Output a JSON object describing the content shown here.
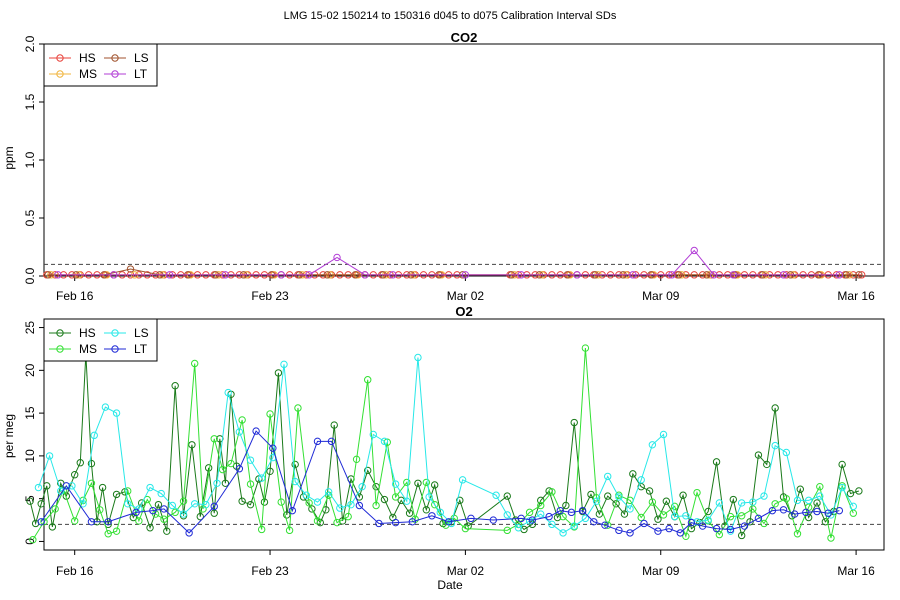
{
  "figure_title": "LMG   15-02    150214 to 150316    d045 to d075   Calibration Interval SDs",
  "xlabel": "Date",
  "x_ticks": [
    {
      "label": "Feb 16",
      "day": 2
    },
    {
      "label": "Feb 23",
      "day": 9
    },
    {
      "label": "Mar 02",
      "day": 16
    },
    {
      "label": "Mar 09",
      "day": 23
    },
    {
      "label": "Mar 16",
      "day": 30
    }
  ],
  "colors": {
    "HS_co2": "#e8413a",
    "MS_co2": "#f0b43c",
    "LS_co2": "#a0522d",
    "LT_co2": "#b23ed6",
    "HS_o2": "#1a7a1a",
    "MS_o2": "#33e033",
    "LS_o2": "#27e8e8",
    "LT_o2": "#1f2ad6",
    "refline": "#444444"
  },
  "chart_data": [
    {
      "type": "line",
      "title": "CO2",
      "ylabel": "ppm",
      "xlim": [
        0.9,
        31.0
      ],
      "ylim": [
        0,
        2.0
      ],
      "y_ticks": [
        "0.0",
        "0.5",
        "1.0",
        "1.5",
        "2.0"
      ],
      "y_tick_values": [
        0,
        0.5,
        1.0,
        1.5,
        2.0
      ],
      "reference_line": 0.1,
      "legend": [
        "HS",
        "MS",
        "LS",
        "LT"
      ],
      "series": [
        {
          "name": "HS",
          "x": [
            1.0,
            1.3,
            1.6,
            1.9,
            2.2,
            2.5,
            2.8,
            3.1,
            3.4,
            3.7,
            4.0,
            4.3,
            4.6,
            4.9,
            5.2,
            5.5,
            5.8,
            6.1,
            6.4,
            6.7,
            7.0,
            7.3,
            7.6,
            7.9,
            8.2,
            8.5,
            8.8,
            9.1,
            9.4,
            9.7,
            10.0,
            10.3,
            10.6,
            10.9,
            11.2,
            11.5,
            11.8,
            12.1,
            12.4,
            12.7,
            13.0,
            13.3,
            13.6,
            13.9,
            14.2,
            14.5,
            14.8,
            15.1,
            15.4,
            15.7,
            17.6,
            17.9,
            18.2,
            18.5,
            18.8,
            19.1,
            19.4,
            19.7,
            20.0,
            20.3,
            20.6,
            20.9,
            21.2,
            21.5,
            21.8,
            22.1,
            22.4,
            22.7,
            23.0,
            23.3,
            23.6,
            23.9,
            24.2,
            24.5,
            24.8,
            25.1,
            25.4,
            25.7,
            26.0,
            26.3,
            26.6,
            26.9,
            27.2,
            27.5,
            27.8,
            28.1,
            28.4,
            28.7,
            29.0,
            29.3,
            29.6,
            29.9,
            30.2
          ],
          "values": [
            0.01,
            0.01,
            0.01,
            0.01,
            0.01,
            0.01,
            0.01,
            0.01,
            0.01,
            0.01,
            0.01,
            0.01,
            0.01,
            0.01,
            0.01,
            0.01,
            0.01,
            0.01,
            0.01,
            0.01,
            0.01,
            0.01,
            0.01,
            0.01,
            0.01,
            0.01,
            0.01,
            0.01,
            0.01,
            0.01,
            0.01,
            0.01,
            0.01,
            0.01,
            0.01,
            0.01,
            0.01,
            0.01,
            0.01,
            0.01,
            0.01,
            0.01,
            0.01,
            0.01,
            0.01,
            0.01,
            0.01,
            0.01,
            0.01,
            0.01,
            0.01,
            0.01,
            0.01,
            0.01,
            0.01,
            0.01,
            0.01,
            0.01,
            0.01,
            0.01,
            0.01,
            0.01,
            0.01,
            0.01,
            0.01,
            0.01,
            0.01,
            0.01,
            0.01,
            0.01,
            0.01,
            0.01,
            0.01,
            0.01,
            0.01,
            0.01,
            0.01,
            0.01,
            0.01,
            0.01,
            0.01,
            0.01,
            0.01,
            0.01,
            0.01,
            0.01,
            0.01,
            0.01,
            0.01,
            0.01,
            0.01,
            0.01,
            0.01
          ]
        },
        {
          "name": "MS",
          "x": [
            1.15,
            2.15,
            3.15,
            4.15,
            5.15,
            6.15,
            7.15,
            8.15,
            9.15,
            10.15,
            11.15,
            12.15,
            13.15,
            14.15,
            15.15,
            17.75,
            18.75,
            19.75,
            20.75,
            21.75,
            22.75,
            23.75,
            24.75,
            25.75,
            26.75,
            27.75,
            28.75,
            29.75
          ],
          "values": [
            0.01,
            0.01,
            0.01,
            0.01,
            0.01,
            0.01,
            0.01,
            0.01,
            0.01,
            0.01,
            0.01,
            0.01,
            0.01,
            0.01,
            0.01,
            0.01,
            0.01,
            0.01,
            0.01,
            0.01,
            0.01,
            0.01,
            0.01,
            0.01,
            0.01,
            0.01,
            0.01,
            0.01
          ]
        },
        {
          "name": "LS",
          "x": [
            1.05,
            2.05,
            3.05,
            4.0,
            5.05,
            6.05,
            7.05,
            8.05,
            9.05,
            10.05,
            11.05,
            12.05,
            13.05,
            14.05,
            15.05,
            15.9,
            17.65,
            18.65,
            19.65,
            20.65,
            21.65,
            22.65,
            23.65,
            24.65,
            25.65,
            26.65,
            27.65,
            28.65,
            29.65,
            30.1
          ],
          "values": [
            0.01,
            0.01,
            0.01,
            0.06,
            0.01,
            0.01,
            0.01,
            0.01,
            0.01,
            0.01,
            0.01,
            0.01,
            0.01,
            0.01,
            0.01,
            0.01,
            0.01,
            0.01,
            0.01,
            0.01,
            0.01,
            0.01,
            0.01,
            0.01,
            0.01,
            0.01,
            0.01,
            0.01,
            0.01,
            0.01
          ]
        },
        {
          "name": "LT",
          "x": [
            1.4,
            3.4,
            5.4,
            7.4,
            9.4,
            10.4,
            11.4,
            12.4,
            13.4,
            16.0,
            18.0,
            20.0,
            22.0,
            23.4,
            24.2,
            24.9,
            25.6,
            27.4,
            29.4
          ],
          "values": [
            0.01,
            0.01,
            0.01,
            0.01,
            0.01,
            0.01,
            0.16,
            0.01,
            0.01,
            0.01,
            0.01,
            0.01,
            0.01,
            0.01,
            0.22,
            0.01,
            0.01,
            0.01,
            0.01
          ]
        }
      ]
    },
    {
      "type": "line",
      "title": "O2",
      "ylabel": "per meg",
      "xlim": [
        0.9,
        31.0
      ],
      "ylim": [
        -1,
        26
      ],
      "y_ticks": [
        "0",
        "5",
        "10",
        "15",
        "20",
        "25"
      ],
      "y_tick_values": [
        0,
        5,
        10,
        15,
        20,
        25
      ],
      "reference_line": 2.0,
      "legend": [
        "HS",
        "MS",
        "LS",
        "LT"
      ],
      "series": [
        {
          "name": "HS",
          "x": [
            0.4,
            0.6,
            0.8,
            1.0,
            1.2,
            1.5,
            1.7,
            2.0,
            2.2,
            2.4,
            2.6,
            2.8,
            3.0,
            3.2,
            3.5,
            3.8,
            4.1,
            4.4,
            4.7,
            5.0,
            5.3,
            5.6,
            5.9,
            6.2,
            6.5,
            6.8,
            7.0,
            7.2,
            7.4,
            7.6,
            7.8,
            8.0,
            8.3,
            8.6,
            8.8,
            9.0,
            9.3,
            9.6,
            9.9,
            10.2,
            10.5,
            10.8,
            11.0,
            11.3,
            11.6,
            11.9,
            12.2,
            12.5,
            12.8,
            13.1,
            13.4,
            13.7,
            14.0,
            14.3,
            14.6,
            14.9,
            15.2,
            15.5,
            15.8,
            16.1,
            17.5,
            17.8,
            18.1,
            18.4,
            18.7,
            19.0,
            19.3,
            19.6,
            19.9,
            20.2,
            20.5,
            20.8,
            21.1,
            21.4,
            21.7,
            22.0,
            22.3,
            22.6,
            22.9,
            23.2,
            23.5,
            23.8,
            24.1,
            24.4,
            24.7,
            25.0,
            25.3,
            25.6,
            25.9,
            26.2,
            26.5,
            26.8,
            27.1,
            27.4,
            27.7,
            28.0,
            28.3,
            28.6,
            28.9,
            29.2,
            29.5,
            29.8,
            30.1
          ],
          "values": [
            4.7,
            2.1,
            4.4,
            6.5,
            1.7,
            6.8,
            5.3,
            7.8,
            9.2,
            21.9,
            9.1,
            2.3,
            6.3,
            2.0,
            5.5,
            5.8,
            2.8,
            4.5,
            1.6,
            4.3,
            1.2,
            18.2,
            3.0,
            11.3,
            2.9,
            8.6,
            3.3,
            12.0,
            6.8,
            17.2,
            8.8,
            4.7,
            4.3,
            7.3,
            4.6,
            8.2,
            19.7,
            3.1,
            9.0,
            5.2,
            3.8,
            2.2,
            3.7,
            13.6,
            2.4,
            7.3,
            5.2,
            8.3,
            6.4,
            4.9,
            2.8,
            4.8,
            3.3,
            6.8,
            3.7,
            6.6,
            2.1,
            2.3,
            4.8,
            1.8,
            5.3,
            2.5,
            1.4,
            2.0,
            4.8,
            5.9,
            2.8,
            4.2,
            13.9,
            3.5,
            5.5,
            3.2,
            5.3,
            4.4,
            3.2,
            7.9,
            6.4,
            5.9,
            2.6,
            4.7,
            2.9,
            5.4,
            1.5,
            2.2,
            3.5,
            9.3,
            1.8,
            4.9,
            0.7,
            2.3,
            10.1,
            9.0,
            15.6,
            5.2,
            3.0,
            6.1,
            2.8,
            4.5,
            2.3,
            3.5,
            9.0,
            5.6,
            5.9
          ]
        },
        {
          "name": "MS",
          "x": [
            0.5,
            0.9,
            1.3,
            1.6,
            2.0,
            2.3,
            2.6,
            2.9,
            3.2,
            3.5,
            3.9,
            4.3,
            4.6,
            4.9,
            5.2,
            5.6,
            5.9,
            6.3,
            6.6,
            7.0,
            7.3,
            7.6,
            8.0,
            8.3,
            8.7,
            9.0,
            9.4,
            9.7,
            10.0,
            10.4,
            10.7,
            11.1,
            11.4,
            11.8,
            12.1,
            12.5,
            12.8,
            13.2,
            13.5,
            13.9,
            14.2,
            14.6,
            14.9,
            15.3,
            15.6,
            16.0,
            17.5,
            17.9,
            18.3,
            18.7,
            19.1,
            19.5,
            19.9,
            20.3,
            20.7,
            21.1,
            21.5,
            21.9,
            22.3,
            22.7,
            23.1,
            23.5,
            23.9,
            24.3,
            24.7,
            25.1,
            25.5,
            25.9,
            26.3,
            26.7,
            27.1,
            27.5,
            27.9,
            28.3,
            28.7,
            29.1,
            29.5,
            29.9
          ],
          "values": [
            0.2,
            2.3,
            3.8,
            6.0,
            2.4,
            4.8,
            6.8,
            3.7,
            0.9,
            1.2,
            5.9,
            2.4,
            4.9,
            3.2,
            2.6,
            3.4,
            4.7,
            20.8,
            3.8,
            12.0,
            8.4,
            9.1,
            14.2,
            6.7,
            1.4,
            14.9,
            4.6,
            1.3,
            15.6,
            4.5,
            2.4,
            5.4,
            2.2,
            2.9,
            9.6,
            18.9,
            4.2,
            11.6,
            5.2,
            6.9,
            2.6,
            6.9,
            4.3,
            1.9,
            2.7,
            1.5,
            1.3,
            2.0,
            3.4,
            4.2,
            5.8,
            2.9,
            1.7,
            22.6,
            5.1,
            1.9,
            5.4,
            4.8,
            2.8,
            4.6,
            3.1,
            4.1,
            0.6,
            5.7,
            2.4,
            0.8,
            2.9,
            3.0,
            3.8,
            2.1,
            4.4,
            5.0,
            0.9,
            4.0,
            6.4,
            0.4,
            6.5,
            3.3
          ]
        },
        {
          "name": "LS",
          "x": [
            0.7,
            1.1,
            1.5,
            1.9,
            2.3,
            2.7,
            3.1,
            3.5,
            3.9,
            4.3,
            4.7,
            5.1,
            5.5,
            5.9,
            6.3,
            6.7,
            7.1,
            7.5,
            7.9,
            8.3,
            8.7,
            9.1,
            9.5,
            9.9,
            10.3,
            10.7,
            11.1,
            11.5,
            11.9,
            12.3,
            12.7,
            13.1,
            13.5,
            13.9,
            14.3,
            14.7,
            15.1,
            15.5,
            15.9,
            17.1,
            17.5,
            17.9,
            18.3,
            18.7,
            19.1,
            19.5,
            19.9,
            20.3,
            20.7,
            21.1,
            21.5,
            21.9,
            22.3,
            22.7,
            23.1,
            23.5,
            23.9,
            24.3,
            24.7,
            25.1,
            25.5,
            25.9,
            26.3,
            26.7,
            27.1,
            27.5,
            27.9,
            28.3,
            28.7,
            29.1,
            29.5,
            29.9
          ],
          "values": [
            6.3,
            10.0,
            5.9,
            6.5,
            4.4,
            12.4,
            15.7,
            15.0,
            4.4,
            3.8,
            6.3,
            5.6,
            4.2,
            3.2,
            4.4,
            4.3,
            6.8,
            17.4,
            12.8,
            9.5,
            7.4,
            9.8,
            20.7,
            7.0,
            5.4,
            4.6,
            5.8,
            3.9,
            4.3,
            6.4,
            12.5,
            11.7,
            6.7,
            4.7,
            21.5,
            5.2,
            3.4,
            2.1,
            7.2,
            5.4,
            3.1,
            1.6,
            2.4,
            3.2,
            2.0,
            1.0,
            1.8,
            2.7,
            4.7,
            7.6,
            5.2,
            3.8,
            7.2,
            11.3,
            12.5,
            2.9,
            3.0,
            2.3,
            2.5,
            4.5,
            1.2,
            4.5,
            4.6,
            5.3,
            11.2,
            10.4,
            4.8,
            4.8,
            5.3,
            3.1,
            6.3,
            4.1
          ]
        },
        {
          "name": "LT",
          "x": [
            0.8,
            1.7,
            2.6,
            3.2,
            4.2,
            4.8,
            5.2,
            6.1,
            7.0,
            7.9,
            8.5,
            9.1,
            9.8,
            10.7,
            11.2,
            12.2,
            12.9,
            13.5,
            14.1,
            14.8,
            15.4,
            16.2,
            17.0,
            18.0,
            18.4,
            19.0,
            19.4,
            19.8,
            20.2,
            20.6,
            21.0,
            21.5,
            21.9,
            22.4,
            22.9,
            23.3,
            23.7,
            24.1,
            24.5,
            25.0,
            25.5,
            26.0,
            26.5,
            27.0,
            27.4,
            27.8,
            28.2,
            28.6,
            29.0,
            29.4
          ],
          "values": [
            2.3,
            6.5,
            2.3,
            2.3,
            3.4,
            3.6,
            3.8,
            1.0,
            4.1,
            8.5,
            12.9,
            10.9,
            3.6,
            11.7,
            11.7,
            4.2,
            2.1,
            2.2,
            2.3,
            3.0,
            2.3,
            2.7,
            2.5,
            2.7,
            2.5,
            2.9,
            3.6,
            3.4,
            3.6,
            2.3,
            1.9,
            1.3,
            1.0,
            2.1,
            1.2,
            1.5,
            1.0,
            2.2,
            1.8,
            1.5,
            1.4,
            1.8,
            2.7,
            3.6,
            3.7,
            3.2,
            3.4,
            3.5,
            3.3,
            3.6
          ]
        }
      ]
    }
  ]
}
